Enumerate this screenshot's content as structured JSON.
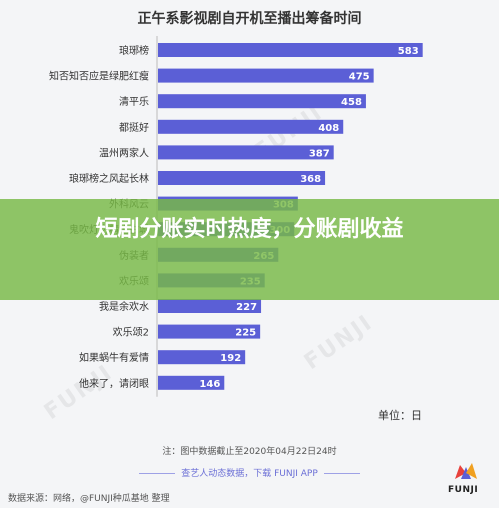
{
  "chart_data": {
    "type": "bar",
    "orientation": "horizontal",
    "title": "正午系影视剧自开机至播出筹备时间",
    "categories": [
      "琅琊榜",
      "知否知否应是绿肥红瘦",
      "清平乐",
      "都挺好",
      "温州两家人",
      "琅琊榜之风起长林",
      "外科风云",
      "鬼吹灯之精绝古城",
      "伪装者",
      "欢乐颂",
      "我是余欢水",
      "欢乐颂2",
      "如果蜗牛有爱情",
      "他来了，请闭眼"
    ],
    "values": [
      583,
      475,
      458,
      408,
      387,
      368,
      308,
      300,
      265,
      235,
      227,
      225,
      192,
      146
    ],
    "unit": "单位：日",
    "bar_color": "#5b5fd6",
    "xlim": [
      0,
      600
    ],
    "legend": "none",
    "grid": false
  },
  "footer": {
    "note": "注：图中数据截止至2020年04月22日24时",
    "promo": "查艺人动态数据，下载 FUNJI APP",
    "source": "数据来源：网络，@FUNJI种瓜基地 整理",
    "logo_text": "FUNJI"
  },
  "watermark": "FUNJI",
  "banner": {
    "text": "短剧分账实时热度，分账剧收益",
    "color": "#78b946"
  }
}
